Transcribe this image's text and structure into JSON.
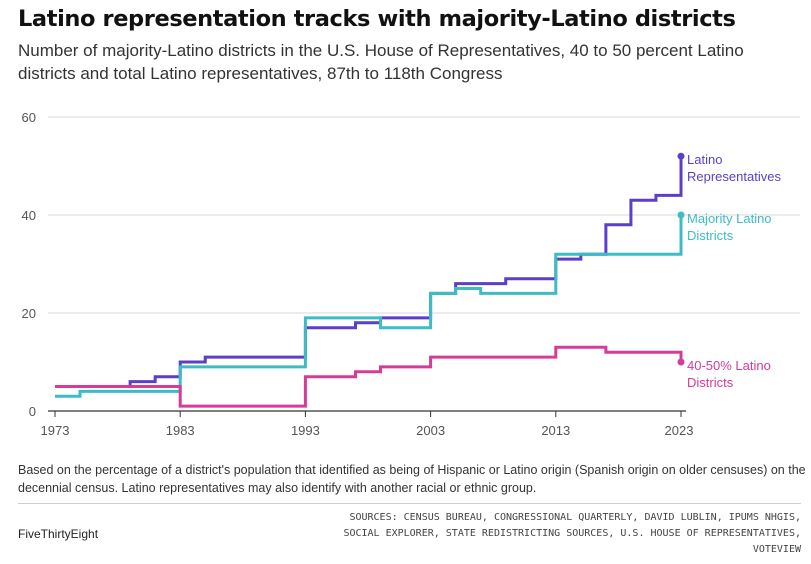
{
  "title": "Latino representation tracks with majority-Latino districts",
  "subtitle": "Number of majority-Latino districts in the U.S. House of Representatives, 40 to 50 percent Latino districts and total Latino representatives, 87th to 118th Congress",
  "note": "Based on the percentage of a district's population that identified as being of Hispanic or Latino origin (Spanish origin on older censuses) on the decennial census. Latino representatives may also identify with another racial or ethnic group.",
  "brand": "FiveThirtyEight",
  "sources": "SOURCES: CENSUS BUREAU, CONGRESSIONAL QUARTERLY, DAVID LUBLIN, IPUMS NHGIS, SOCIAL EXPLORER, STATE REDISTRICTING SOURCES, U.S. HOUSE OF REPRESENTATIVES, VOTEVIEW",
  "colors": {
    "latino_representatives": "#5b3fc8",
    "majority_latino_districts": "#3dbcc6",
    "forty_fifty_districts": "#d63b98",
    "grid": "#d9d9d9",
    "axis": "#333333"
  },
  "chart_data": {
    "type": "line",
    "step": true,
    "xlim": [
      1973,
      2023
    ],
    "ylim": [
      0,
      60
    ],
    "x_ticks": [
      "1973",
      "1983",
      "1993",
      "2003",
      "2013",
      "2023"
    ],
    "y_ticks": [
      "0",
      "20",
      "40",
      "60"
    ],
    "grid": "horizontal",
    "series": [
      {
        "name": "Latino Representatives",
        "label_lines": [
          "Latino",
          "Representatives"
        ],
        "color": "#5b3fc8",
        "points": [
          [
            1973,
            5
          ],
          [
            1979,
            6
          ],
          [
            1981,
            7
          ],
          [
            1983,
            10
          ],
          [
            1985,
            11
          ],
          [
            1993,
            17
          ],
          [
            1997,
            18
          ],
          [
            1999,
            19
          ],
          [
            2003,
            24
          ],
          [
            2005,
            26
          ],
          [
            2009,
            27
          ],
          [
            2013,
            31
          ],
          [
            2015,
            32
          ],
          [
            2017,
            38
          ],
          [
            2019,
            43
          ],
          [
            2021,
            44
          ],
          [
            2023,
            52
          ]
        ]
      },
      {
        "name": "Majority Latino Districts",
        "label_lines": [
          "Majority Latino",
          "Districts"
        ],
        "color": "#3dbcc6",
        "points": [
          [
            1973,
            3
          ],
          [
            1975,
            4
          ],
          [
            1983,
            9
          ],
          [
            1993,
            19
          ],
          [
            1999,
            17
          ],
          [
            2003,
            24
          ],
          [
            2005,
            25
          ],
          [
            2007,
            24
          ],
          [
            2013,
            32
          ],
          [
            2023,
            40
          ]
        ]
      },
      {
        "name": "40-50% Latino Districts",
        "label_lines": [
          "40-50% Latino",
          "Districts"
        ],
        "color": "#d63b98",
        "points": [
          [
            1973,
            5
          ],
          [
            1983,
            1
          ],
          [
            1993,
            7
          ],
          [
            1997,
            8
          ],
          [
            1999,
            9
          ],
          [
            2003,
            11
          ],
          [
            2013,
            13
          ],
          [
            2017,
            12
          ],
          [
            2023,
            10
          ]
        ]
      }
    ]
  }
}
